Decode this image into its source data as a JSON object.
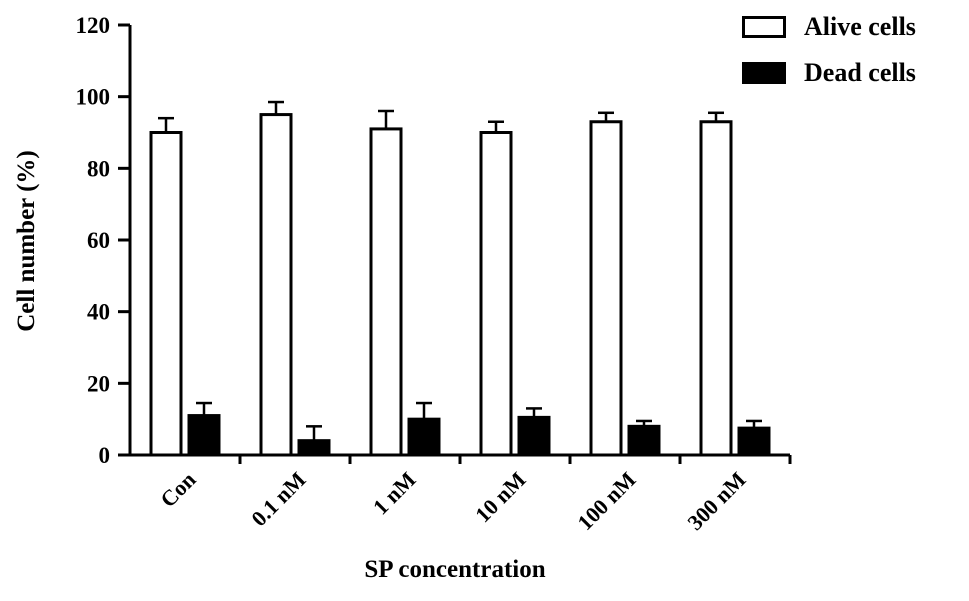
{
  "chart_data": {
    "type": "bar",
    "title": "",
    "xlabel": "SP concentration",
    "ylabel": "Cell number (%)",
    "ylim": [
      0,
      120
    ],
    "yticks": [
      0,
      20,
      40,
      60,
      80,
      100,
      120
    ],
    "grid": false,
    "legend_position": "top-right",
    "categories": [
      "Con",
      "0.1 nM",
      "1 nM",
      "10 nM",
      "100 nM",
      "300 nM"
    ],
    "series": [
      {
        "name": "Alive cells",
        "fill": "#ffffff",
        "stroke": "#000000",
        "values": [
          90,
          95,
          91,
          90,
          93,
          93
        ],
        "errors": [
          4,
          3.5,
          5,
          3,
          2.5,
          2.5
        ]
      },
      {
        "name": "Dead cells",
        "fill": "#000000",
        "stroke": "#000000",
        "values": [
          11,
          4,
          10,
          10.5,
          8,
          7.5
        ],
        "errors": [
          3.5,
          4,
          4.5,
          2.5,
          1.5,
          2
        ]
      }
    ],
    "colors": {
      "axis": "#000000",
      "text": "#000000",
      "background": "#ffffff"
    }
  }
}
